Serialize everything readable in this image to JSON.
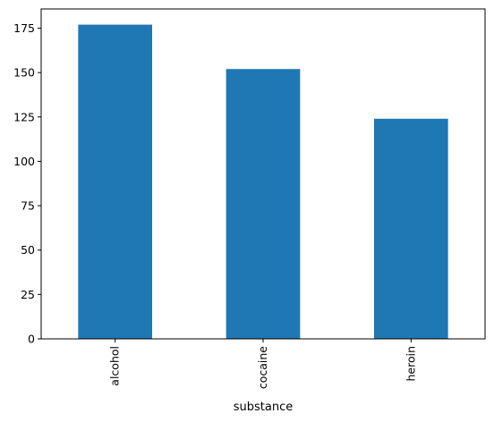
{
  "chart_data": {
    "type": "bar",
    "categories": [
      "alcohol",
      "cocaine",
      "heroin"
    ],
    "values": [
      177,
      152,
      124
    ],
    "xlabel": "substance",
    "ylabel": "",
    "ylim": [
      0,
      185.85
    ],
    "yticks": [
      0,
      25,
      50,
      75,
      100,
      125,
      150,
      175
    ],
    "grid": false,
    "bar_color": "#1f77b4",
    "x_tick_rotation": "vertical"
  }
}
